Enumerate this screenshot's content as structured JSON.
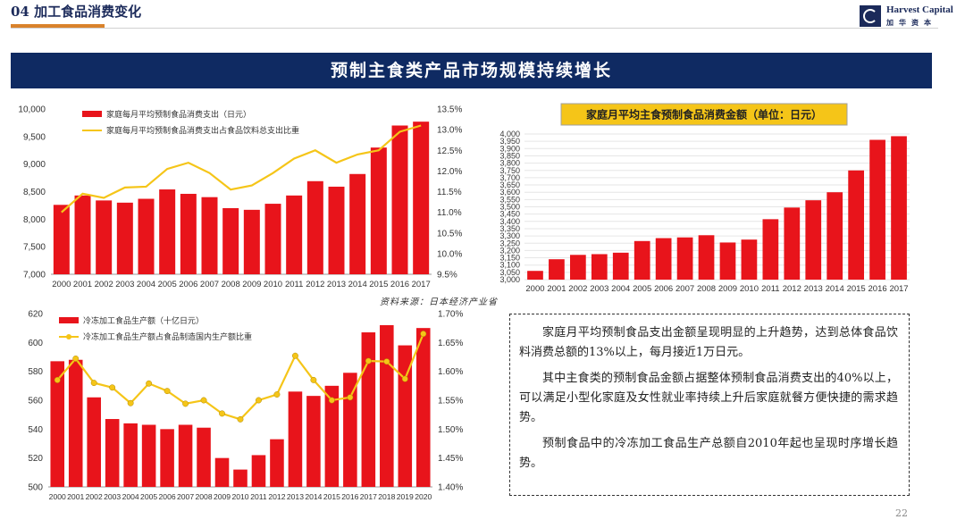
{
  "header": {
    "section_title": "04 加工食品消费变化",
    "logo_name": "Harvest Capital",
    "logo_sub": "加华资本"
  },
  "banner": {
    "title": "预制主食类产品市场规模持续增长"
  },
  "source_note": "资料来源：日本经济产业省",
  "text_box": {
    "paragraphs": [
      "家庭月平均预制食品支出金额呈现明显的上升趋势，达到总体食品饮料消费总额的13%以上，每月接近1万日元。",
      "其中主食类的预制食品金额占据整体预制食品消费支出的40%以上，可以满足小型化家庭及女性就业率持续上升后家庭就餐方便快捷的需求趋势。",
      "预制食品中的冷冻加工食品生产总额自2010年起也呈现时序增长趋势。"
    ]
  },
  "page_number": "22",
  "colors": {
    "bar": "#e8141b",
    "line": "#f5c518",
    "navy": "#0f2a62",
    "accent": "#d9822b"
  },
  "chart_data": [
    {
      "type": "bar+line",
      "categories": [
        "2000",
        "2001",
        "2002",
        "2003",
        "2004",
        "2005",
        "2006",
        "2007",
        "2008",
        "2009",
        "2010",
        "2011",
        "2012",
        "2013",
        "2014",
        "2015",
        "2016",
        "2017"
      ],
      "series": [
        {
          "name": "家庭每月平均预制食品消费支出（日元）",
          "type": "bar",
          "axis": "left",
          "values": [
            8260,
            8430,
            8340,
            8300,
            8370,
            8540,
            8460,
            8400,
            8200,
            8170,
            8280,
            8430,
            8690,
            8590,
            8820,
            9300,
            9700,
            9770
          ]
        },
        {
          "name": "家庭每月平均预制食品消费支出占食品饮料总支出比重",
          "type": "line",
          "axis": "right",
          "values": [
            11.0,
            11.45,
            11.35,
            11.6,
            11.62,
            12.05,
            12.2,
            11.95,
            11.55,
            11.65,
            11.95,
            12.3,
            12.5,
            12.2,
            12.4,
            12.5,
            12.95,
            13.1
          ]
        }
      ],
      "y_left": {
        "min": 7000,
        "max": 10000,
        "ticks": [
          "7,000",
          "7,500",
          "8,000",
          "8,500",
          "9,000",
          "9,500",
          "10,000"
        ]
      },
      "y_right": {
        "min": 9.5,
        "max": 13.5,
        "ticks": [
          "9.5%",
          "10.0%",
          "10.5%",
          "11.0%",
          "11.5%",
          "12.0%",
          "12.5%",
          "13.0%",
          "13.5%"
        ]
      },
      "legend_position": "top-left"
    },
    {
      "type": "bar",
      "title": "家庭月平均主食预制食品消费金额（单位：日元）",
      "categories": [
        "2000",
        "2001",
        "2002",
        "2003",
        "2004",
        "2005",
        "2006",
        "2007",
        "2008",
        "2009",
        "2010",
        "2011",
        "2012",
        "2013",
        "2014",
        "2015",
        "2016",
        "2017"
      ],
      "values": [
        3060,
        3140,
        3170,
        3175,
        3185,
        3265,
        3285,
        3290,
        3305,
        3255,
        3275,
        3415,
        3495,
        3545,
        3600,
        3750,
        3960,
        3985
      ],
      "y_left": {
        "min": 3000,
        "max": 4000,
        "ticks": [
          "3,000",
          "3,050",
          "3,100",
          "3,150",
          "3,200",
          "3,250",
          "3,300",
          "3,350",
          "3,400",
          "3,450",
          "3,500",
          "3,550",
          "3,600",
          "3,650",
          "3,700",
          "3,750",
          "3,800",
          "3,850",
          "3,900",
          "3,950",
          "4,000"
        ]
      }
    },
    {
      "type": "bar+line",
      "categories": [
        "2000",
        "2001",
        "2002",
        "2003",
        "2004",
        "2005",
        "2006",
        "2007",
        "2008",
        "2009",
        "2010",
        "2011",
        "2012",
        "2013",
        "2014",
        "2015",
        "2016",
        "2017",
        "2018",
        "2019",
        "2020"
      ],
      "series": [
        {
          "name": "冷冻加工食品生产额（十亿日元）",
          "type": "bar",
          "axis": "left",
          "values": [
            587,
            588,
            562,
            547,
            544,
            543,
            540,
            543,
            541,
            520,
            512,
            522,
            533,
            566,
            563,
            570,
            579,
            607,
            612,
            598,
            610
          ]
        },
        {
          "name": "冷冻加工食品生产额占食品制造国内生产额比重",
          "type": "line",
          "axis": "right",
          "values": [
            1.585,
            1.622,
            1.58,
            1.572,
            1.545,
            1.579,
            1.566,
            1.544,
            1.55,
            1.527,
            1.517,
            1.55,
            1.56,
            1.627,
            1.585,
            1.55,
            1.555,
            1.618,
            1.617,
            1.587,
            1.665
          ]
        }
      ],
      "y_left": {
        "min": 500,
        "max": 620,
        "ticks": [
          "500",
          "520",
          "540",
          "560",
          "580",
          "600",
          "620"
        ]
      },
      "y_right": {
        "min": 1.4,
        "max": 1.7,
        "ticks": [
          "1.40%",
          "1.45%",
          "1.50%",
          "1.55%",
          "1.60%",
          "1.65%",
          "1.70%"
        ]
      },
      "legend_position": "top-left"
    }
  ]
}
